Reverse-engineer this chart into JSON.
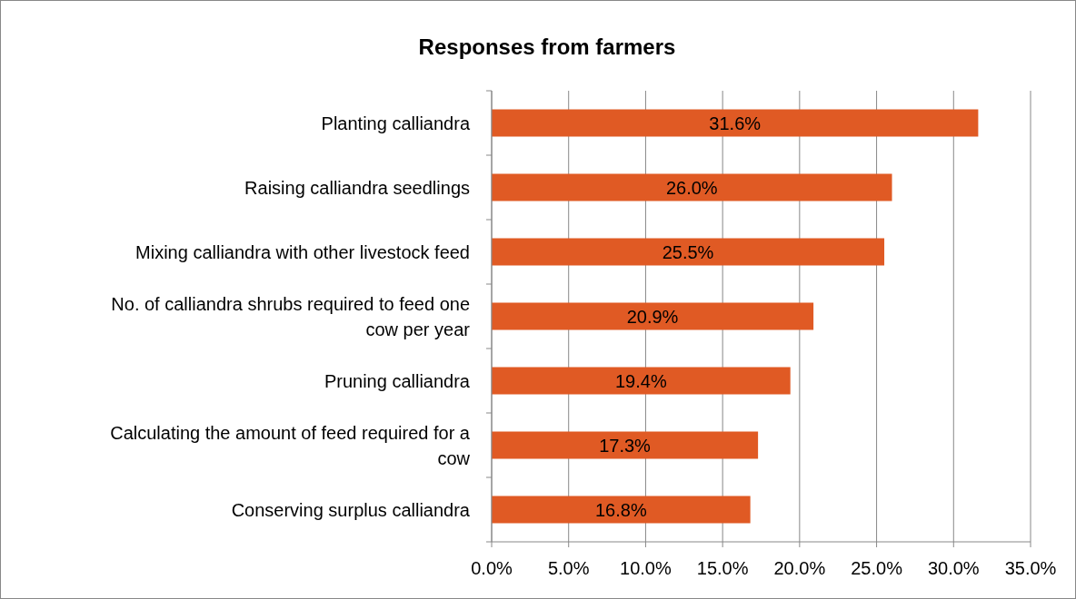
{
  "chart_data": {
    "type": "bar",
    "title": "Responses from farmers",
    "orientation": "horizontal",
    "categories": [
      "Planting calliandra",
      "Raising calliandra seedlings",
      "Mixing calliandra with other livestock feed",
      "No. of calliandra shrubs required to feed one cow per year",
      "Pruning calliandra",
      "Calculating the amount of feed required for a cow",
      "Conserving surplus calliandra"
    ],
    "values": [
      31.6,
      26.0,
      25.5,
      20.9,
      19.4,
      17.3,
      16.8
    ],
    "value_labels": [
      "31.6%",
      "26.0%",
      "25.5%",
      "20.9%",
      "19.4%",
      "17.3%",
      "16.8%"
    ],
    "color": "#e05a24",
    "xlim": [
      0,
      35
    ],
    "xticks": [
      {
        "value": 0,
        "label": "0.0%"
      },
      {
        "value": 5,
        "label": "5.0%"
      },
      {
        "value": 10,
        "label": "10.0%"
      },
      {
        "value": 15,
        "label": "15.0%"
      },
      {
        "value": 20,
        "label": "20.0%"
      },
      {
        "value": 25,
        "label": "25.0%"
      },
      {
        "value": 30,
        "label": "30.0%"
      },
      {
        "value": 35,
        "label": "35.0%"
      }
    ],
    "grid": "x"
  }
}
